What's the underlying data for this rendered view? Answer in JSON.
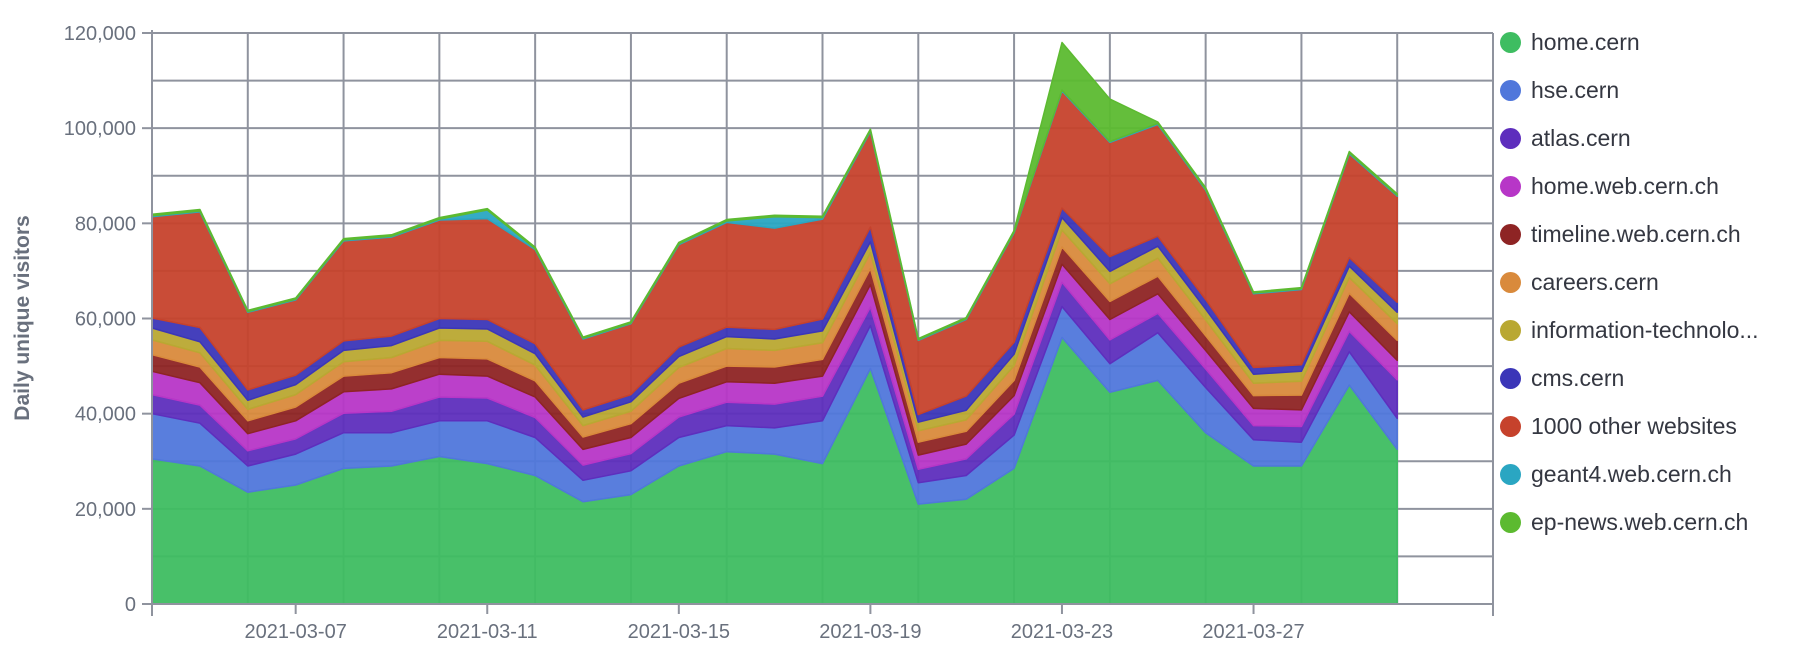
{
  "chart_data": {
    "type": "area",
    "stacked": true,
    "ylabel": "Daily unique visitors",
    "xlabel": "",
    "ylim": [
      0,
      120000
    ],
    "y_ticks": [
      "0",
      "20,000",
      "40,000",
      "60,000",
      "80,000",
      "100,000",
      "120,000"
    ],
    "y_tick_values": [
      0,
      20000,
      40000,
      60000,
      80000,
      100000,
      120000
    ],
    "x_tick_labels": [
      "2021-03-07",
      "2021-03-11",
      "2021-03-15",
      "2021-03-19",
      "2021-03-23",
      "2021-03-27"
    ],
    "x_tick_dates": [
      "2021-03-07",
      "2021-03-11",
      "2021-03-15",
      "2021-03-19",
      "2021-03-23",
      "2021-03-27"
    ],
    "xlim": [
      "2021-03-04",
      "2021-04-01"
    ],
    "grid": true,
    "legend_position": "right",
    "x": [
      "2021-03-04",
      "2021-03-05",
      "2021-03-06",
      "2021-03-07",
      "2021-03-08",
      "2021-03-09",
      "2021-03-10",
      "2021-03-11",
      "2021-03-12",
      "2021-03-13",
      "2021-03-14",
      "2021-03-15",
      "2021-03-16",
      "2021-03-17",
      "2021-03-18",
      "2021-03-19",
      "2021-03-20",
      "2021-03-21",
      "2021-03-22",
      "2021-03-23",
      "2021-03-24",
      "2021-03-25",
      "2021-03-26",
      "2021-03-27",
      "2021-03-28",
      "2021-03-29",
      "2021-03-30"
    ],
    "series": [
      {
        "name": "home.cern",
        "color": "#3ebd61",
        "values": [
          30500,
          29000,
          23500,
          25000,
          28500,
          29000,
          31000,
          29500,
          27000,
          21500,
          23000,
          29000,
          32000,
          31500,
          29500,
          49500,
          21000,
          22000,
          28500,
          56000,
          44500,
          47000,
          36000,
          29000,
          29000,
          46000,
          32500
        ]
      },
      {
        "name": "hse.cern",
        "color": "#5077db",
        "values": [
          9500,
          9000,
          5500,
          6500,
          7500,
          7000,
          7500,
          9000,
          8000,
          4500,
          5000,
          6000,
          5500,
          5500,
          9000,
          9000,
          4500,
          5000,
          7000,
          6500,
          6000,
          10000,
          9500,
          5500,
          5000,
          7000,
          6500
        ]
      },
      {
        "name": "atlas.cern",
        "color": "#5e2ebd",
        "values": [
          4000,
          3800,
          3200,
          3200,
          4100,
          4500,
          5000,
          4800,
          4200,
          3200,
          3600,
          4300,
          4900,
          5000,
          5200,
          3900,
          2800,
          3500,
          4400,
          5100,
          5000,
          4100,
          3900,
          3000,
          3300,
          4300,
          8100
        ]
      },
      {
        "name": "home.web.cern.ch",
        "color": "#b736c7",
        "values": [
          4900,
          4700,
          3600,
          3800,
          4500,
          4700,
          4800,
          4600,
          4300,
          3300,
          3400,
          3900,
          4300,
          4400,
          4200,
          4700,
          3000,
          3100,
          3900,
          3800,
          4300,
          4100,
          3900,
          3600,
          3500,
          4100,
          4100
        ]
      },
      {
        "name": "timeline.web.cern.ch",
        "color": "#8e2424",
        "values": [
          3500,
          3300,
          2700,
          2900,
          3300,
          3400,
          3500,
          3600,
          3400,
          2600,
          2900,
          3200,
          3300,
          3400,
          3500,
          3400,
          2700,
          2700,
          3200,
          3600,
          3800,
          3700,
          3100,
          2700,
          3100,
          3900,
          4200
        ]
      },
      {
        "name": "careers.cern",
        "color": "#d98a3c",
        "values": [
          3100,
          3000,
          2400,
          2600,
          3000,
          3200,
          3600,
          3700,
          3300,
          2400,
          2600,
          3300,
          3700,
          3500,
          3500,
          3300,
          2400,
          2400,
          3100,
          3600,
          3700,
          3800,
          3300,
          2600,
          2900,
          3300,
          3500
        ]
      },
      {
        "name": "information-technolo...",
        "color": "#b9a832",
        "values": [
          2500,
          2300,
          1900,
          2100,
          2400,
          2500,
          2600,
          2600,
          2400,
          1800,
          2000,
          2300,
          2500,
          2400,
          2500,
          2300,
          1800,
          2000,
          2400,
          2600,
          2600,
          2500,
          2300,
          1900,
          2100,
          2400,
          2400
        ]
      },
      {
        "name": "cms.cern",
        "color": "#3b36b8",
        "values": [
          2100,
          3000,
          2200,
          2000,
          2000,
          2000,
          2000,
          2000,
          2100,
          1500,
          1500,
          2000,
          2000,
          2000,
          2500,
          3100,
          1600,
          3000,
          2500,
          2000,
          3100,
          2100,
          2000,
          1400,
          1400,
          1800,
          2100
        ]
      },
      {
        "name": "1000 other websites",
        "color": "#c6422c",
        "values": [
          21300,
          24300,
          16300,
          15800,
          21000,
          20800,
          20700,
          21200,
          19800,
          14900,
          14900,
          21500,
          22000,
          21300,
          21000,
          20100,
          15600,
          16100,
          23000,
          24600,
          24000,
          23500,
          23000,
          15500,
          15800,
          21800,
          22300
        ]
      },
      {
        "name": "geant4.web.cern.ch",
        "color": "#2aa6c2",
        "values": [
          200,
          200,
          150,
          150,
          200,
          200,
          200,
          1800,
          200,
          150,
          150,
          200,
          300,
          2400,
          300,
          200,
          150,
          150,
          200,
          200,
          200,
          200,
          200,
          150,
          150,
          200,
          200
        ]
      },
      {
        "name": "ep-news.web.cern.ch",
        "color": "#5cba30",
        "values": [
          300,
          300,
          250,
          250,
          300,
          300,
          300,
          300,
          300,
          250,
          250,
          300,
          300,
          300,
          300,
          300,
          250,
          250,
          300,
          10000,
          8900,
          300,
          300,
          250,
          250,
          300,
          300
        ]
      }
    ]
  }
}
